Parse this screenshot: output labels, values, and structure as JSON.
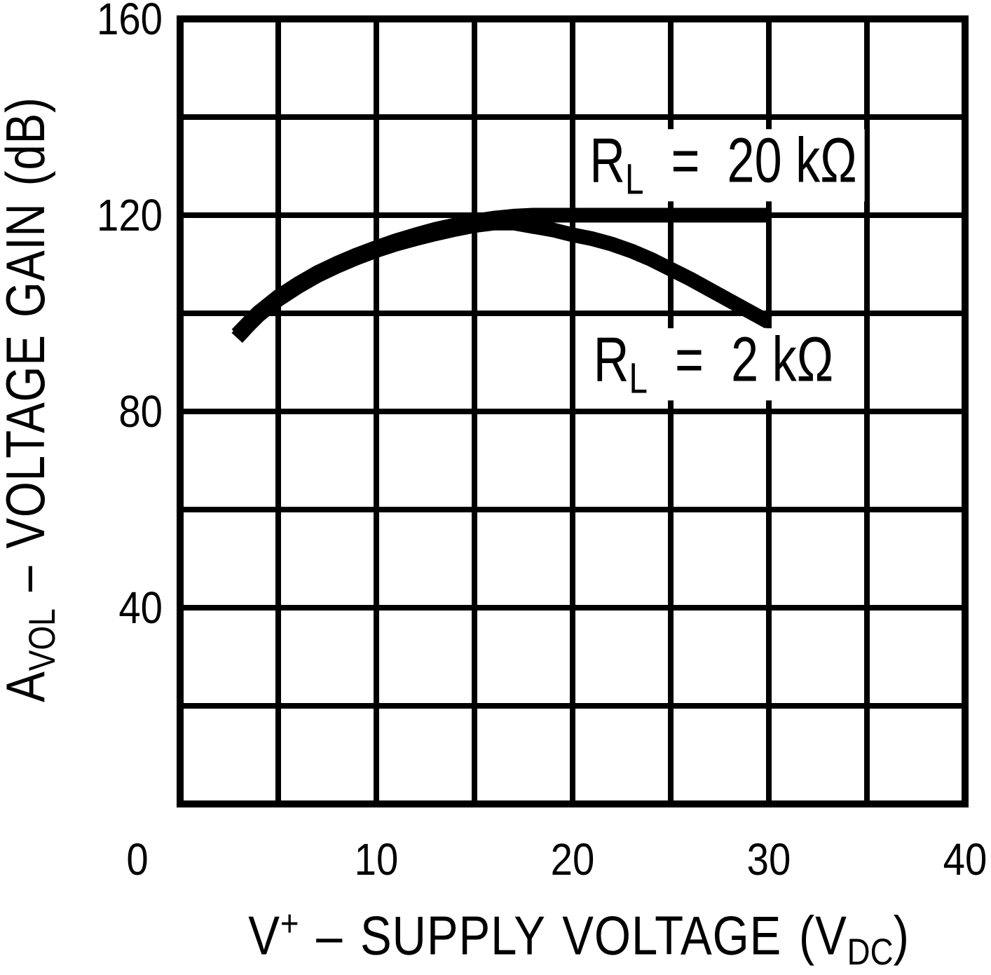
{
  "figure": {
    "background": "#ffffff",
    "ink_color": "#000000"
  },
  "labels": {
    "y_axis": {
      "letter": "A",
      "sub": "VOL",
      "rest": " – VOLTAGE GAIN (dB)"
    },
    "x_axis": {
      "letter": "V",
      "sup": "+",
      "rest": " – SUPPLY VOLTAGE (V",
      "sub": "DC",
      "close": ")"
    },
    "annotations": [
      {
        "r": "R",
        "sub": "L",
        "rest": "  =  20 kΩ"
      },
      {
        "r": "R",
        "sub": "L",
        "rest": "  =  2 kΩ"
      }
    ]
  },
  "chart_data": {
    "type": "line",
    "title": "",
    "xlabel": "V+ – SUPPLY VOLTAGE (VDC)",
    "ylabel": "AVOL – VOLTAGE GAIN (dB)",
    "xlim": [
      0,
      40
    ],
    "ylim": [
      0,
      160
    ],
    "x_ticks": [
      0,
      10,
      20,
      30,
      40
    ],
    "y_ticks": [
      160,
      120,
      80,
      40
    ],
    "x_grid_step": 5,
    "y_grid_step": 20,
    "grid": true,
    "legend_position": "inline-annotations",
    "series": [
      {
        "name": "RL = 20 kΩ",
        "points": [
          [
            2.9,
            95.7
          ],
          [
            3.5,
            98.2
          ],
          [
            4,
            100.2
          ],
          [
            5,
            103.4
          ],
          [
            6,
            106.0
          ],
          [
            7,
            108.3
          ],
          [
            8,
            110.2
          ],
          [
            9,
            111.9
          ],
          [
            10,
            113.4
          ],
          [
            11,
            114.8
          ],
          [
            12,
            116.0
          ],
          [
            13,
            117.1
          ],
          [
            14,
            118.0
          ],
          [
            15,
            118.8
          ],
          [
            16,
            119.4
          ],
          [
            17,
            119.8
          ],
          [
            18,
            120.0
          ],
          [
            20,
            120.0
          ],
          [
            22,
            120.0
          ],
          [
            24,
            120.0
          ],
          [
            26,
            120.0
          ],
          [
            28,
            120.0
          ],
          [
            30,
            120.0
          ]
        ]
      },
      {
        "name": "RL = 2 kΩ",
        "points": [
          [
            2.9,
            95.0
          ],
          [
            3.5,
            97.6
          ],
          [
            4,
            99.6
          ],
          [
            5,
            102.8
          ],
          [
            6,
            105.4
          ],
          [
            7,
            107.7
          ],
          [
            8,
            109.6
          ],
          [
            9,
            111.3
          ],
          [
            10,
            112.8
          ],
          [
            11,
            114.1
          ],
          [
            12,
            115.2
          ],
          [
            13,
            116.2
          ],
          [
            14,
            117.1
          ],
          [
            15,
            117.9
          ],
          [
            16,
            118.4
          ],
          [
            17,
            118.4
          ],
          [
            18,
            117.7
          ],
          [
            19,
            117.0
          ],
          [
            20,
            116.0
          ],
          [
            21,
            115.2
          ],
          [
            22,
            114.1
          ],
          [
            23,
            112.7
          ],
          [
            24,
            111.0
          ],
          [
            25,
            109.0
          ],
          [
            26,
            107.0
          ],
          [
            27,
            104.8
          ],
          [
            28,
            102.6
          ],
          [
            29,
            100.4
          ],
          [
            30,
            98.2
          ]
        ]
      }
    ]
  }
}
